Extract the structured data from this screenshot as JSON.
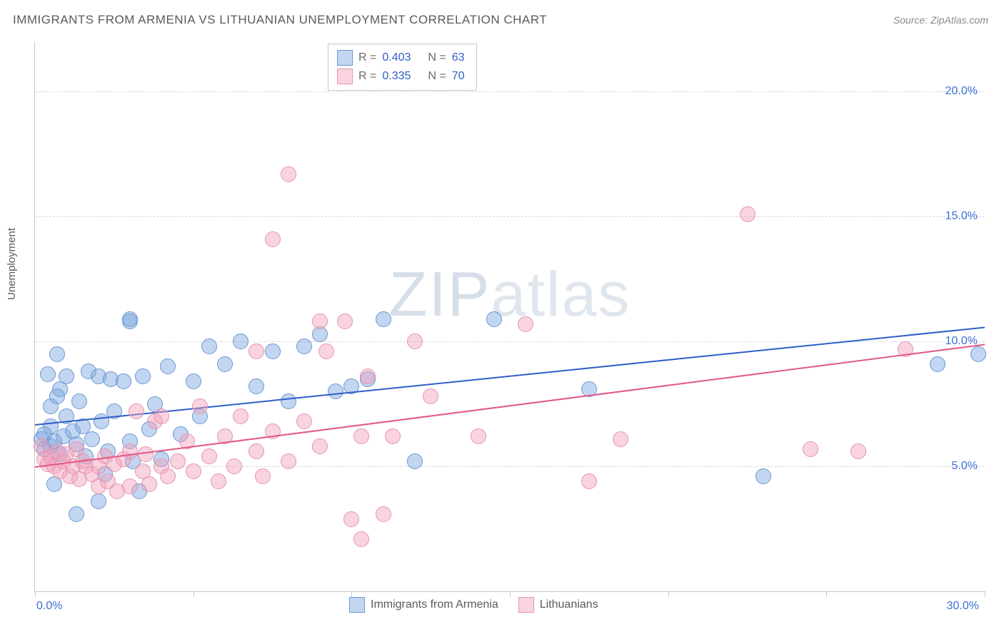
{
  "title": "IMMIGRANTS FROM ARMENIA VS LITHUANIAN UNEMPLOYMENT CORRELATION CHART",
  "source_label": "Source: ZipAtlas.com",
  "watermark": "ZIPatlas",
  "y_axis_label": "Unemployment",
  "chart": {
    "type": "scatter",
    "x_domain": [
      0,
      30
    ],
    "y_domain": [
      0,
      22
    ],
    "x_ticks": [
      0,
      5,
      10,
      15,
      20,
      25,
      30
    ],
    "x_tick_labels": {
      "0": "0.0%",
      "30": "30.0%"
    },
    "y_gridlines": [
      5,
      10,
      15,
      20
    ],
    "y_tick_labels": {
      "5": "5.0%",
      "10": "10.0%",
      "15": "15.0%",
      "20": "20.0%"
    },
    "grid_color": "#d8d8d8",
    "axis_color": "#c8c8c8",
    "tick_label_color": "#3b6fd6",
    "marker_radius": 10,
    "series": [
      {
        "name": "Immigrants from Armenia",
        "fill": "rgba(120,165,224,0.45)",
        "stroke": "#6b97cf",
        "trend": {
          "x1": 0,
          "y1": 6.7,
          "x2": 30,
          "y2": 10.6,
          "color": "#2f5fc7",
          "width": 2
        },
        "legend_stats": {
          "R": "0.403",
          "N": "63"
        },
        "points": [
          [
            0.2,
            6.1
          ],
          [
            0.3,
            5.7
          ],
          [
            0.3,
            6.3
          ],
          [
            0.4,
            8.7
          ],
          [
            0.5,
            5.8
          ],
          [
            0.5,
            6.6
          ],
          [
            0.5,
            7.4
          ],
          [
            0.6,
            4.3
          ],
          [
            0.6,
            6.0
          ],
          [
            0.7,
            9.5
          ],
          [
            0.7,
            7.8
          ],
          [
            0.8,
            5.5
          ],
          [
            0.8,
            8.1
          ],
          [
            0.9,
            6.2
          ],
          [
            1.0,
            7.0
          ],
          [
            1.0,
            8.6
          ],
          [
            1.2,
            6.4
          ],
          [
            1.3,
            3.1
          ],
          [
            1.3,
            5.9
          ],
          [
            1.4,
            7.6
          ],
          [
            1.5,
            6.6
          ],
          [
            1.6,
            5.4
          ],
          [
            1.7,
            8.8
          ],
          [
            1.8,
            6.1
          ],
          [
            2.0,
            3.6
          ],
          [
            2.0,
            8.6
          ],
          [
            2.1,
            6.8
          ],
          [
            2.2,
            4.7
          ],
          [
            2.3,
            5.6
          ],
          [
            2.4,
            8.5
          ],
          [
            2.5,
            7.2
          ],
          [
            2.8,
            8.4
          ],
          [
            3.0,
            6.0
          ],
          [
            3.0,
            10.8
          ],
          [
            3.0,
            10.9
          ],
          [
            3.1,
            5.2
          ],
          [
            3.3,
            4.0
          ],
          [
            3.4,
            8.6
          ],
          [
            3.6,
            6.5
          ],
          [
            3.8,
            7.5
          ],
          [
            4.0,
            5.3
          ],
          [
            4.2,
            9.0
          ],
          [
            4.6,
            6.3
          ],
          [
            5.0,
            8.4
          ],
          [
            5.2,
            7.0
          ],
          [
            5.5,
            9.8
          ],
          [
            6.0,
            9.1
          ],
          [
            6.5,
            10.0
          ],
          [
            7.0,
            8.2
          ],
          [
            7.5,
            9.6
          ],
          [
            8.0,
            7.6
          ],
          [
            8.5,
            9.8
          ],
          [
            9.0,
            10.3
          ],
          [
            9.5,
            8.0
          ],
          [
            10.0,
            8.2
          ],
          [
            10.5,
            8.5
          ],
          [
            11.0,
            10.9
          ],
          [
            12.0,
            5.2
          ],
          [
            14.5,
            10.9
          ],
          [
            17.5,
            8.1
          ],
          [
            23.0,
            4.6
          ],
          [
            28.5,
            9.1
          ],
          [
            29.8,
            9.5
          ]
        ]
      },
      {
        "name": "Lithuanians",
        "fill": "rgba(241,160,186,0.45)",
        "stroke": "#e594af",
        "trend": {
          "x1": 0,
          "y1": 5.0,
          "x2": 30,
          "y2": 9.9,
          "color": "#e15a86",
          "width": 2
        },
        "legend_stats": {
          "R": "0.335",
          "N": "70"
        },
        "points": [
          [
            0.2,
            5.8
          ],
          [
            0.3,
            5.3
          ],
          [
            0.4,
            5.1
          ],
          [
            0.5,
            5.4
          ],
          [
            0.6,
            5.0
          ],
          [
            0.7,
            5.6
          ],
          [
            0.8,
            4.8
          ],
          [
            0.9,
            5.2
          ],
          [
            1.0,
            5.5
          ],
          [
            1.1,
            4.6
          ],
          [
            1.2,
            5.0
          ],
          [
            1.3,
            5.7
          ],
          [
            1.4,
            4.5
          ],
          [
            1.5,
            5.2
          ],
          [
            1.6,
            5.0
          ],
          [
            1.8,
            4.7
          ],
          [
            2.0,
            5.0
          ],
          [
            2.0,
            4.2
          ],
          [
            2.2,
            5.4
          ],
          [
            2.3,
            4.4
          ],
          [
            2.5,
            5.1
          ],
          [
            2.6,
            4.0
          ],
          [
            2.8,
            5.3
          ],
          [
            3.0,
            5.6
          ],
          [
            3.0,
            4.2
          ],
          [
            3.2,
            7.2
          ],
          [
            3.4,
            4.8
          ],
          [
            3.5,
            5.5
          ],
          [
            3.6,
            4.3
          ],
          [
            3.8,
            6.8
          ],
          [
            4.0,
            5.0
          ],
          [
            4.0,
            7.0
          ],
          [
            4.2,
            4.6
          ],
          [
            4.5,
            5.2
          ],
          [
            4.8,
            6.0
          ],
          [
            5.0,
            4.8
          ],
          [
            5.2,
            7.4
          ],
          [
            5.5,
            5.4
          ],
          [
            5.8,
            4.4
          ],
          [
            6.0,
            6.2
          ],
          [
            6.3,
            5.0
          ],
          [
            6.5,
            7.0
          ],
          [
            7.0,
            5.6
          ],
          [
            7.0,
            9.6
          ],
          [
            7.2,
            4.6
          ],
          [
            7.5,
            6.4
          ],
          [
            7.5,
            14.1
          ],
          [
            8.0,
            5.2
          ],
          [
            8.0,
            16.7
          ],
          [
            8.5,
            6.8
          ],
          [
            9.0,
            5.8
          ],
          [
            9.0,
            10.8
          ],
          [
            9.2,
            9.6
          ],
          [
            9.8,
            10.8
          ],
          [
            10.0,
            2.9
          ],
          [
            10.3,
            6.2
          ],
          [
            10.3,
            2.1
          ],
          [
            10.5,
            8.6
          ],
          [
            11.0,
            3.1
          ],
          [
            11.3,
            6.2
          ],
          [
            12.0,
            10.0
          ],
          [
            12.5,
            7.8
          ],
          [
            14.0,
            6.2
          ],
          [
            15.5,
            10.7
          ],
          [
            17.5,
            4.4
          ],
          [
            18.5,
            6.1
          ],
          [
            22.5,
            15.1
          ],
          [
            24.5,
            5.7
          ],
          [
            26.0,
            5.6
          ],
          [
            27.5,
            9.7
          ]
        ]
      }
    ]
  },
  "legend_top": {
    "R_label": "R =",
    "N_label": "N ="
  },
  "legend_bottom": {
    "series1_label": "Immigrants from Armenia",
    "series2_label": "Lithuanians"
  }
}
